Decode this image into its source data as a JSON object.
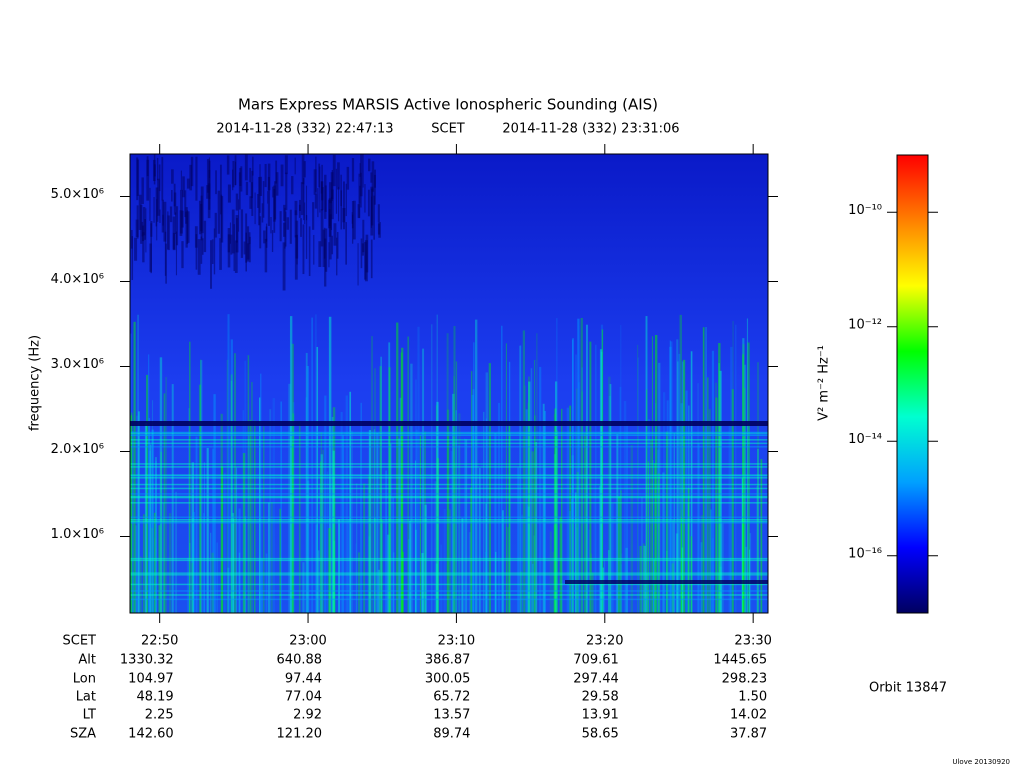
{
  "chart_data": {
    "type": "spectrogram",
    "title": "Mars Express MARSIS Active Ionospheric Sounding (AIS)",
    "start_time": "2014-11-28 (332) 22:47:13",
    "time_system": "SCET",
    "end_time": "2014-11-28 (332) 23:31:06",
    "ylabel": "frequency (Hz)",
    "ylim": [
      100000,
      5500000
    ],
    "yticks": [
      {
        "value": 1000000,
        "label": "1.0×10⁶"
      },
      {
        "value": 2000000,
        "label": "2.0×10⁶"
      },
      {
        "value": 3000000,
        "label": "3.0×10⁶"
      },
      {
        "value": 4000000,
        "label": "4.0×10⁶"
      },
      {
        "value": 5000000,
        "label": "5.0×10⁶"
      }
    ],
    "xlim": [
      "22:48",
      "23:31"
    ],
    "xticks": [
      "22:50",
      "23:00",
      "23:10",
      "23:20",
      "23:30"
    ],
    "ephemeris": [
      {
        "name": "Alt",
        "values": [
          1330.32,
          640.88,
          386.87,
          709.61,
          1445.65
        ],
        "value_labels": [
          "1330.32",
          "640.88",
          "386.87",
          "709.61",
          "1445.65"
        ]
      },
      {
        "name": "Lon",
        "values": [
          104.97,
          97.44,
          300.05,
          297.44,
          298.23
        ],
        "value_labels": [
          "104.97",
          "97.44",
          "300.05",
          "297.44",
          "298.23"
        ]
      },
      {
        "name": "Lat",
        "values": [
          48.19,
          77.04,
          65.72,
          29.58,
          1.5
        ],
        "value_labels": [
          "48.19",
          "77.04",
          "65.72",
          "29.58",
          "1.50"
        ]
      },
      {
        "name": "LT",
        "values": [
          2.25,
          2.92,
          13.57,
          13.91,
          14.02
        ],
        "value_labels": [
          "2.25",
          "2.92",
          "13.57",
          "13.91",
          "14.02"
        ]
      },
      {
        "name": "SZA",
        "values": [
          142.6,
          121.2,
          89.74,
          58.65,
          37.87
        ],
        "value_labels": [
          "142.60",
          "121.20",
          "89.74",
          "58.65",
          "37.87"
        ]
      }
    ],
    "colorbar": {
      "label": "V² m⁻² Hz⁻¹",
      "log_scale": true,
      "zlim": [
        1e-17,
        1e-09
      ],
      "zticks": [
        {
          "value": 1e-16,
          "label": "10⁻¹⁶"
        },
        {
          "value": 1e-14,
          "label": "10⁻¹⁴"
        },
        {
          "value": 1e-12,
          "label": "10⁻¹²"
        },
        {
          "value": 1e-10,
          "label": "10⁻¹⁰"
        }
      ],
      "colormap": [
        "#000060",
        "#0000ff",
        "#00a0ff",
        "#00ffd0",
        "#00ff00",
        "#ffff00",
        "#ff8000",
        "#ff0000"
      ]
    },
    "orbit": "Orbit 13847",
    "footer": "Ulove 20130920"
  }
}
